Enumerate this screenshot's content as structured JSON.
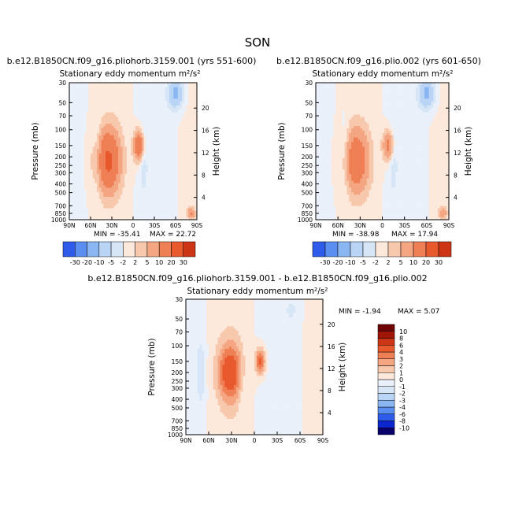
{
  "page_title": "SON",
  "colors": {
    "neg": [
      "#08006b",
      "#0b26cf",
      "#2f5bea",
      "#5a8ef0",
      "#8ab6f2",
      "#b9d4f4",
      "#d7e6f7",
      "#eaf1fa"
    ],
    "pos": [
      "#fde9dc",
      "#f8c8ad",
      "#f4a682",
      "#ef7f55",
      "#e8592d",
      "#cd3517",
      "#a01508",
      "#6e0403"
    ]
  },
  "chart_data": [
    {
      "type": "heatmap",
      "title": "b.e12.B1850CN.f09_g16.pliohorb.3159.001 (yrs 551-600)",
      "subtitle": "Stationary eddy momentum m²/s²",
      "xlabel": "",
      "ylabel": "Pressure (mb)",
      "y2label": "Height (km)",
      "x_ticks": [
        "90N",
        "60N",
        "30N",
        "0",
        "30S",
        "60S",
        "90S"
      ],
      "y_ticks": [
        "30",
        "50",
        "70",
        "100",
        "150",
        "200",
        "250",
        "300",
        "400",
        "500",
        "700",
        "850",
        "1000"
      ],
      "y2_ticks": [
        "20",
        "16",
        "12",
        "8",
        "4"
      ],
      "min_label": "MIN = -35.41",
      "max_label": "MAX = 22.72",
      "min": -35.41,
      "max": 22.72,
      "levels": [
        -30,
        -20,
        -10,
        -5,
        -2,
        2,
        5,
        10,
        20,
        30
      ],
      "colorbar_labels": [
        "-30",
        "-20",
        "-10",
        "-5",
        "-2",
        "2",
        "5",
        "10",
        "20",
        "30"
      ],
      "features": [
        {
          "lat": 35,
          "p": 220,
          "value": 22,
          "shape": "main-jet"
        },
        {
          "lat": -8,
          "p": 150,
          "value": 18,
          "shape": "eq-jet"
        },
        {
          "lat": -15,
          "p": 220,
          "value": -3,
          "shape": "dip"
        },
        {
          "lat": 50,
          "p": 200,
          "value": -4,
          "shape": "dip"
        },
        {
          "lat": -60,
          "p": 40,
          "value": -12,
          "shape": "top-neg"
        },
        {
          "lat": -82,
          "p": 850,
          "value": 10,
          "shape": "sfc-pos"
        }
      ]
    },
    {
      "type": "heatmap",
      "title": "b.e12.B1850CN.f09_g16.plio.002 (yrs 601-650)",
      "subtitle": "Stationary eddy momentum m²/s²",
      "xlabel": "",
      "ylabel": "Pressure (mb)",
      "y2label": "Height (km)",
      "x_ticks": [
        "90N",
        "60N",
        "30N",
        "0",
        "30S",
        "60S",
        "90S"
      ],
      "y_ticks": [
        "30",
        "50",
        "70",
        "100",
        "150",
        "200",
        "250",
        "300",
        "400",
        "500",
        "700",
        "850",
        "1000"
      ],
      "y2_ticks": [
        "20",
        "16",
        "12",
        "8",
        "4"
      ],
      "min_label": "MIN = -38.98",
      "max_label": "MAX = 17.94",
      "min": -38.98,
      "max": 17.94,
      "levels": [
        -30,
        -20,
        -10,
        -5,
        -2,
        2,
        5,
        10,
        20,
        30
      ],
      "colorbar_labels": [
        "-30",
        "-20",
        "-10",
        "-5",
        "-2",
        "2",
        "5",
        "10",
        "20",
        "30"
      ],
      "features": [
        {
          "lat": 35,
          "p": 220,
          "value": 17,
          "shape": "main-jet"
        },
        {
          "lat": -8,
          "p": 150,
          "value": 13,
          "shape": "eq-jet"
        },
        {
          "lat": -15,
          "p": 220,
          "value": -3,
          "shape": "dip"
        },
        {
          "lat": 50,
          "p": 200,
          "value": -4,
          "shape": "dip"
        },
        {
          "lat": -60,
          "p": 40,
          "value": -12,
          "shape": "top-neg"
        },
        {
          "lat": -82,
          "p": 850,
          "value": 9,
          "shape": "sfc-pos"
        }
      ]
    },
    {
      "type": "heatmap",
      "title": "b.e12.B1850CN.f09_g16.pliohorb.3159.001 - b.e12.B1850CN.f09_g16.plio.002",
      "subtitle": "Stationary eddy momentum m²/s²",
      "xlabel": "",
      "ylabel": "Pressure (mb)",
      "y2label": "Height (km)",
      "x_ticks": [
        "90N",
        "60N",
        "30N",
        "0",
        "30S",
        "60S",
        "90S"
      ],
      "y_ticks": [
        "30",
        "50",
        "70",
        "100",
        "150",
        "200",
        "250",
        "300",
        "400",
        "500",
        "700",
        "850",
        "1000"
      ],
      "y2_ticks": [
        "20",
        "16",
        "12",
        "8",
        "4"
      ],
      "min_label": "MIN = -1.94",
      "max_label": "MAX = 5.07",
      "min": -1.94,
      "max": 5.07,
      "levels": [
        -10,
        -8,
        -6,
        -4,
        -3,
        -2,
        -1,
        0,
        1,
        2,
        3,
        4,
        6,
        8,
        10
      ],
      "colorbar_labels": [
        "10",
        "8",
        "6",
        "4",
        "3",
        "2",
        "1",
        "0",
        "-1",
        "-2",
        "-3",
        "-4",
        "-6",
        "-8",
        "-10"
      ],
      "features": [
        {
          "lat": 32,
          "p": 200,
          "value": 5,
          "shape": "main-jet"
        },
        {
          "lat": -8,
          "p": 150,
          "value": 4.5,
          "shape": "eq-jet"
        },
        {
          "lat": 70,
          "p": 200,
          "value": -1.5,
          "shape": "dip"
        },
        {
          "lat": -50,
          "p": 40,
          "value": -0.8,
          "shape": "top-neg"
        },
        {
          "lat": 15,
          "p": 300,
          "value": -0.8,
          "shape": "dip"
        }
      ]
    }
  ]
}
